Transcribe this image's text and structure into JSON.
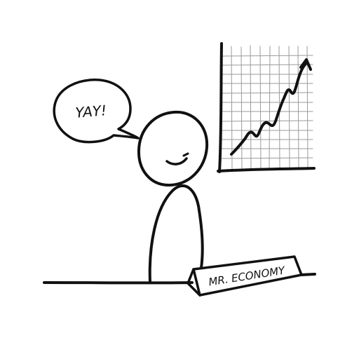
{
  "speech": {
    "text": "YAY!"
  },
  "nameplate": {
    "text": "MR. ECONOMY"
  },
  "colors": {
    "ink": "#111111",
    "paper": "#ffffff",
    "grid": "#9a9a9a"
  }
}
